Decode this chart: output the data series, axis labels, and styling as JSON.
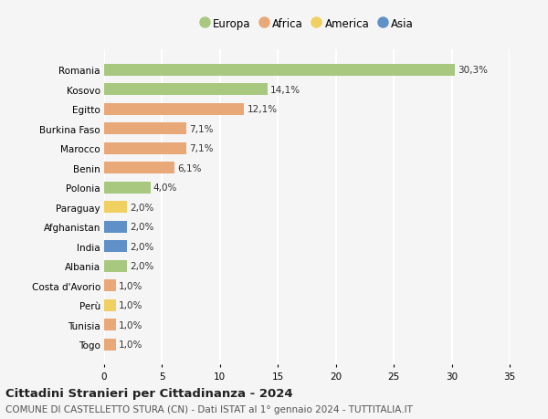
{
  "countries": [
    "Romania",
    "Kosovo",
    "Egitto",
    "Burkina Faso",
    "Marocco",
    "Benin",
    "Polonia",
    "Paraguay",
    "Afghanistan",
    "India",
    "Albania",
    "Costa d'Avorio",
    "Perù",
    "Tunisia",
    "Togo"
  ],
  "values": [
    30.3,
    14.1,
    12.1,
    7.1,
    7.1,
    6.1,
    4.0,
    2.0,
    2.0,
    2.0,
    2.0,
    1.0,
    1.0,
    1.0,
    1.0
  ],
  "labels": [
    "30,3%",
    "14,1%",
    "12,1%",
    "7,1%",
    "7,1%",
    "6,1%",
    "4,0%",
    "2,0%",
    "2,0%",
    "2,0%",
    "2,0%",
    "1,0%",
    "1,0%",
    "1,0%",
    "1,0%"
  ],
  "continents": [
    "Europa",
    "Europa",
    "Africa",
    "Africa",
    "Africa",
    "Africa",
    "Europa",
    "America",
    "Asia",
    "Asia",
    "Europa",
    "Africa",
    "America",
    "Africa",
    "Africa"
  ],
  "continent_colors": {
    "Europa": "#a8c880",
    "Africa": "#e8a878",
    "America": "#f0d060",
    "Asia": "#6090c8"
  },
  "legend_order": [
    "Europa",
    "Africa",
    "America",
    "Asia"
  ],
  "title": "Cittadini Stranieri per Cittadinanza - 2024",
  "subtitle": "COMUNE DI CASTELLETTO STURA (CN) - Dati ISTAT al 1° gennaio 2024 - TUTTITALIA.IT",
  "xlim": [
    0,
    35
  ],
  "xticks": [
    0,
    5,
    10,
    15,
    20,
    25,
    30,
    35
  ],
  "background_color": "#f5f5f5",
  "grid_color": "#ffffff",
  "bar_height": 0.6,
  "title_fontsize": 9.5,
  "subtitle_fontsize": 7.5,
  "tick_fontsize": 7.5,
  "label_fontsize": 7.5,
  "legend_fontsize": 8.5
}
